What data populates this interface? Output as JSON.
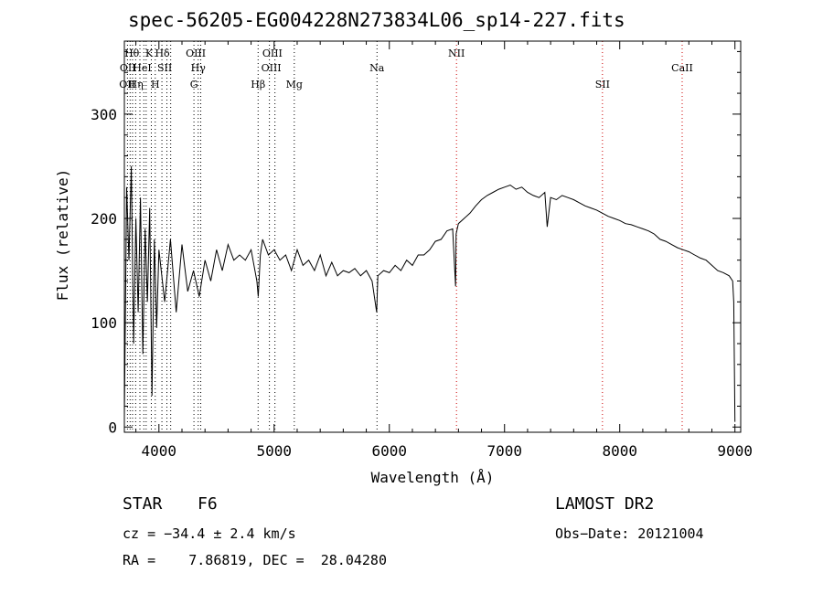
{
  "chart_data": {
    "type": "line",
    "title": "spec-56205-EG004228N273834L06_sp14-227.fits",
    "xlabel": "Wavelength (Å)",
    "ylabel": "Flux (relative)",
    "xlim": [
      3700,
      9050
    ],
    "ylim": [
      -5,
      370
    ],
    "xticks": [
      4000,
      5000,
      6000,
      7000,
      8000,
      9000
    ],
    "yticks": [
      0,
      100,
      200,
      300
    ],
    "grid": false,
    "series": [
      {
        "x": [
          3700,
          3720,
          3740,
          3760,
          3780,
          3800,
          3820,
          3840,
          3860,
          3880,
          3900,
          3920,
          3940,
          3960,
          3980,
          4000,
          4050,
          4100,
          4150,
          4200,
          4250,
          4300,
          4350,
          4400,
          4450,
          4500,
          4550,
          4600,
          4650,
          4700,
          4750,
          4800,
          4850,
          4862,
          4880,
          4900,
          4950,
          5000,
          5050,
          5100,
          5150,
          5200,
          5250,
          5300,
          5350,
          5400,
          5450,
          5500,
          5550,
          5600,
          5650,
          5700,
          5750,
          5800,
          5850,
          5890,
          5900,
          5950,
          6000,
          6050,
          6100,
          6150,
          6200,
          6250,
          6300,
          6350,
          6400,
          6450,
          6500,
          6550,
          6575,
          6580,
          6600,
          6650,
          6700,
          6750,
          6800,
          6850,
          6900,
          6950,
          7000,
          7050,
          7100,
          7150,
          7200,
          7250,
          7300,
          7350,
          7370,
          7400,
          7450,
          7500,
          7550,
          7600,
          7650,
          7700,
          7750,
          7800,
          7850,
          7900,
          7950,
          8000,
          8050,
          8100,
          8150,
          8200,
          8250,
          8300,
          8350,
          8400,
          8450,
          8500,
          8550,
          8600,
          8650,
          8700,
          8750,
          8800,
          8850,
          8900,
          8950,
          8980,
          8990,
          9000
        ],
        "y": [
          10,
          230,
          160,
          250,
          80,
          200,
          110,
          220,
          70,
          190,
          120,
          210,
          30,
          180,
          95,
          170,
          120,
          180,
          110,
          175,
          130,
          150,
          125,
          160,
          140,
          170,
          150,
          175,
          160,
          165,
          160,
          170,
          140,
          125,
          165,
          180,
          165,
          170,
          160,
          165,
          150,
          170,
          155,
          160,
          150,
          165,
          145,
          158,
          145,
          150,
          148,
          152,
          145,
          150,
          140,
          110,
          145,
          150,
          148,
          155,
          150,
          160,
          155,
          165,
          165,
          170,
          178,
          180,
          188,
          190,
          135,
          185,
          195,
          200,
          205,
          212,
          218,
          222,
          225,
          228,
          230,
          232,
          228,
          230,
          225,
          222,
          220,
          225,
          192,
          220,
          218,
          222,
          220,
          218,
          215,
          212,
          210,
          208,
          205,
          202,
          200,
          198,
          195,
          194,
          192,
          190,
          188,
          185,
          180,
          178,
          175,
          172,
          170,
          168,
          165,
          162,
          160,
          155,
          150,
          148,
          145,
          140,
          120,
          5
        ]
      }
    ],
    "reference_lines": [
      {
        "x": 3727,
        "color": "#000000"
      },
      {
        "x": 3750,
        "color": "#000000"
      },
      {
        "x": 3771,
        "color": "#000000"
      },
      {
        "x": 3798,
        "color": "#000000"
      },
      {
        "x": 3835,
        "color": "#000000"
      },
      {
        "x": 3869,
        "color": "#000000"
      },
      {
        "x": 3889,
        "color": "#000000"
      },
      {
        "x": 3934,
        "color": "#000000"
      },
      {
        "x": 3968,
        "color": "#000000"
      },
      {
        "x": 4026,
        "color": "#000000"
      },
      {
        "x": 4069,
        "color": "#000000"
      },
      {
        "x": 4102,
        "color": "#000000"
      },
      {
        "x": 4304,
        "color": "#000000"
      },
      {
        "x": 4341,
        "color": "#000000"
      },
      {
        "x": 4363,
        "color": "#000000"
      },
      {
        "x": 4861,
        "color": "#000000"
      },
      {
        "x": 4959,
        "color": "#000000"
      },
      {
        "x": 5007,
        "color": "#000000"
      },
      {
        "x": 5175,
        "color": "#000000"
      },
      {
        "x": 5893,
        "color": "#000000"
      },
      {
        "x": 6583,
        "color": "#cc0000"
      },
      {
        "x": 7850,
        "color": "#cc0000"
      },
      {
        "x": 8542,
        "color": "#cc0000"
      }
    ],
    "line_labels": [
      {
        "text": "Hθ",
        "x": 3765,
        "row": 1
      },
      {
        "text": "K",
        "x": 3915,
        "row": 1
      },
      {
        "text": "Hδ",
        "x": 4030,
        "row": 1
      },
      {
        "text": "OIII",
        "x": 4320,
        "row": 1
      },
      {
        "text": "OIII",
        "x": 4985,
        "row": 1
      },
      {
        "text": "NII",
        "x": 6583,
        "row": 1
      },
      {
        "text": "OII",
        "x": 3730,
        "row": 2
      },
      {
        "text": "HeI",
        "x": 3855,
        "row": 2
      },
      {
        "text": "SII",
        "x": 4050,
        "row": 2
      },
      {
        "text": "Hγ",
        "x": 4341,
        "row": 2
      },
      {
        "text": "OIII",
        "x": 4975,
        "row": 2
      },
      {
        "text": "Na",
        "x": 5893,
        "row": 2
      },
      {
        "text": "CaII",
        "x": 8542,
        "row": 2
      },
      {
        "text": "OII",
        "x": 3725,
        "row": 3
      },
      {
        "text": "Hη",
        "x": 3800,
        "row": 3
      },
      {
        "text": "H",
        "x": 3968,
        "row": 3
      },
      {
        "text": "G",
        "x": 4304,
        "row": 3
      },
      {
        "text": "Hβ",
        "x": 4861,
        "row": 3
      },
      {
        "text": "Mg",
        "x": 5175,
        "row": 3
      },
      {
        "text": "SII",
        "x": 7850,
        "row": 3
      }
    ],
    "legend": "none"
  },
  "info": {
    "object_class": "STAR",
    "subclass": "F6",
    "survey": "LAMOST DR2",
    "cz": "cz = −34.4 ± 2.4 km/s",
    "obs_date": "Obs−Date: 20121004",
    "coords": "RA =    7.86819, DEC =  28.04280"
  }
}
